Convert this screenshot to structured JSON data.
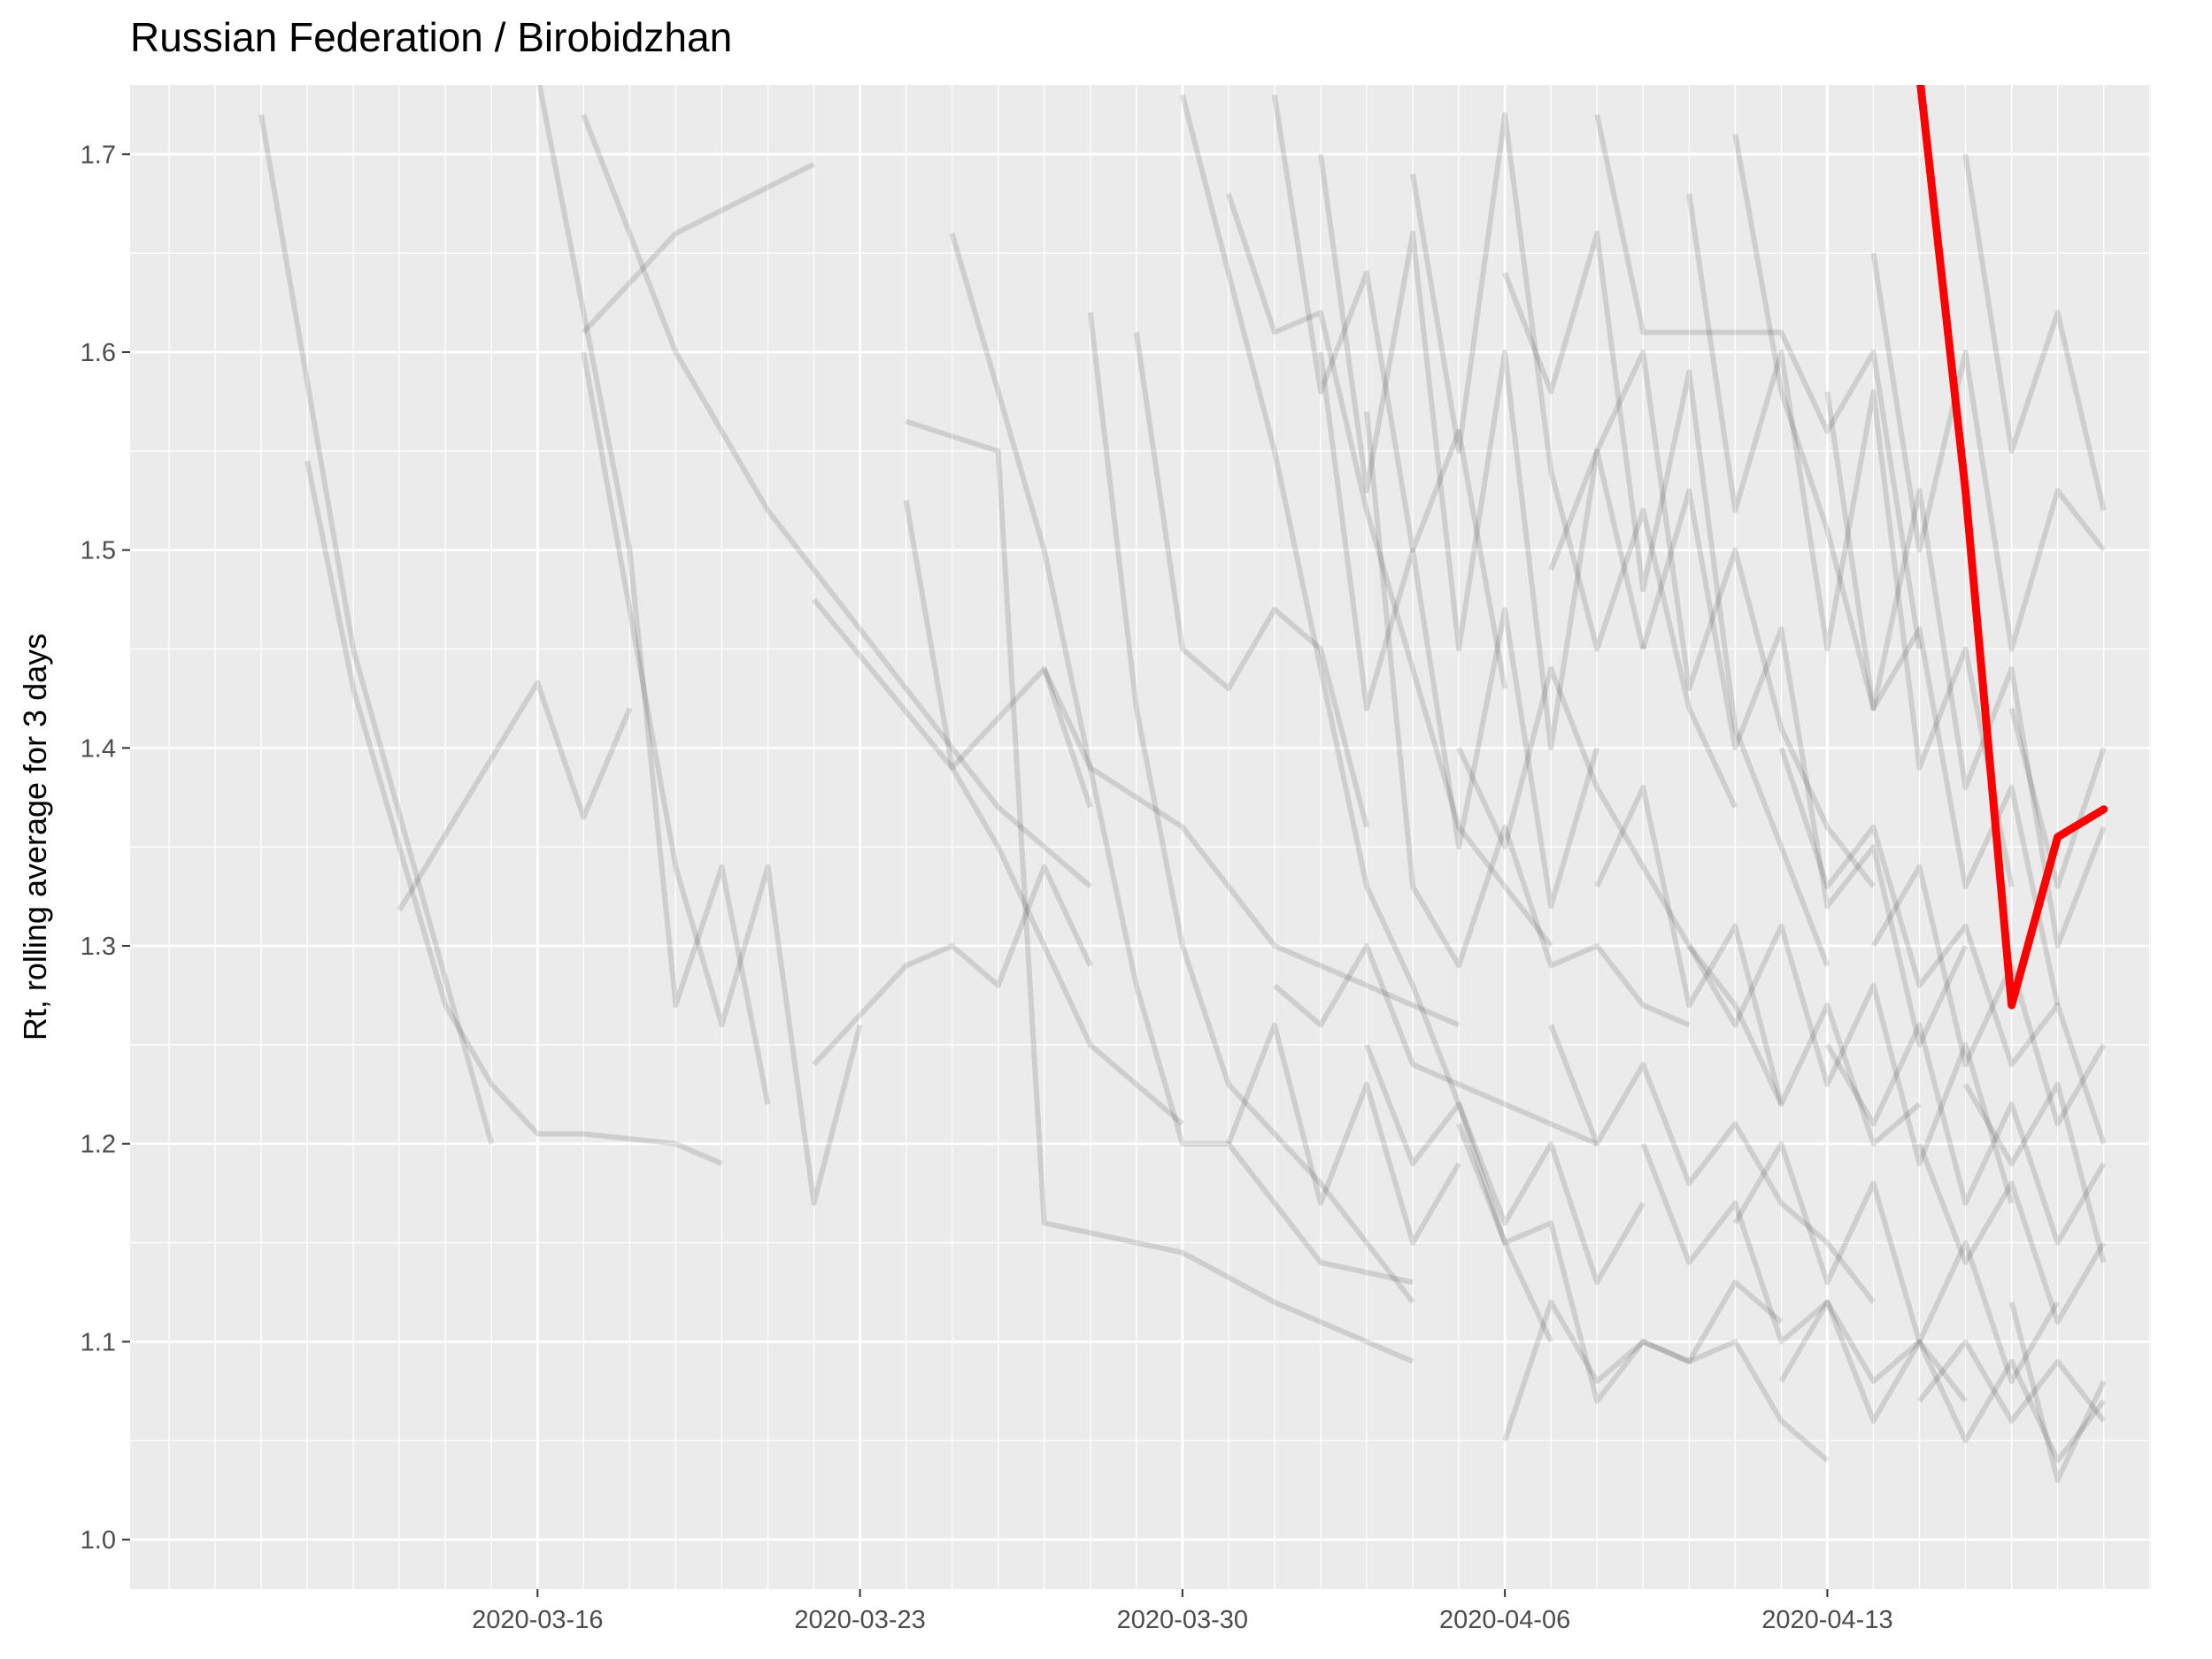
{
  "chart_data": {
    "type": "line",
    "title": "Russian Federation / Birobidzhan",
    "xlabel": "",
    "ylabel": "Rt, rolling average for 3 days",
    "x_type": "date",
    "xlim": [
      "2020-03-09",
      "2020-04-19"
    ],
    "ylim": [
      0.975,
      1.735
    ],
    "x_ticks": [
      "2020-03-16",
      "2020-03-23",
      "2020-03-30",
      "2020-04-06",
      "2020-04-13"
    ],
    "y_ticks": [
      1.0,
      1.1,
      1.2,
      1.3,
      1.4,
      1.5,
      1.6,
      1.7
    ],
    "y_tick_labels": [
      "1.0",
      "1.1",
      "1.2",
      "1.3",
      "1.4",
      "1.5",
      "1.6",
      "1.7"
    ],
    "grid": true,
    "legend": "none",
    "colors": {
      "panel": "#ebebeb",
      "grid": "#ffffff",
      "background_series": "#000000",
      "highlight_series": "#ff0000"
    },
    "background_series_opacity": 0.12,
    "highlight_series": {
      "x": [
        "2020-04-15",
        "2020-04-16",
        "2020-04-17",
        "2020-04-18",
        "2020-04-19"
      ],
      "y": [
        1.74,
        1.53,
        1.27,
        1.355,
        1.369
      ]
    },
    "background_series": [
      {
        "x": [
          "2020-03-10",
          "2020-03-12",
          "2020-03-15"
        ],
        "y": [
          1.72,
          1.45,
          1.2
        ]
      },
      {
        "x": [
          "2020-03-11",
          "2020-03-12",
          "2020-03-14",
          "2020-03-15",
          "2020-03-16",
          "2020-03-17",
          "2020-03-19",
          "2020-03-20"
        ],
        "y": [
          1.545,
          1.43,
          1.27,
          1.23,
          1.205,
          1.205,
          1.2,
          1.19
        ]
      },
      {
        "x": [
          "2020-03-13",
          "2020-03-16",
          "2020-03-17",
          "2020-03-18"
        ],
        "y": [
          1.318,
          1.433,
          1.365,
          1.42
        ]
      },
      {
        "x": [
          "2020-03-17",
          "2020-03-19",
          "2020-03-22"
        ],
        "y": [
          1.61,
          1.66,
          1.695
        ]
      },
      {
        "x": [
          "2020-03-17",
          "2020-03-19",
          "2020-03-21",
          "2020-03-24",
          "2020-03-26",
          "2020-03-28"
        ],
        "y": [
          1.72,
          1.6,
          1.52,
          1.43,
          1.37,
          1.33
        ]
      },
      {
        "x": [
          "2020-03-16",
          "2020-03-18",
          "2020-03-19",
          "2020-03-20",
          "2020-03-21"
        ],
        "y": [
          1.74,
          1.5,
          1.27,
          1.34,
          1.22
        ]
      },
      {
        "x": [
          "2020-03-17",
          "2020-03-19",
          "2020-03-20",
          "2020-03-21",
          "2020-03-22",
          "2020-03-23"
        ],
        "y": [
          1.6,
          1.34,
          1.26,
          1.34,
          1.17,
          1.26
        ]
      },
      {
        "x": [
          "2020-03-22",
          "2020-03-25",
          "2020-03-27",
          "2020-03-28"
        ],
        "y": [
          1.475,
          1.39,
          1.44,
          1.37
        ]
      },
      {
        "x": [
          "2020-03-22",
          "2020-03-24",
          "2020-03-25",
          "2020-03-26",
          "2020-03-27",
          "2020-03-28"
        ],
        "y": [
          1.24,
          1.29,
          1.3,
          1.28,
          1.34,
          1.29
        ]
      },
      {
        "x": [
          "2020-03-24",
          "2020-03-25",
          "2020-03-26",
          "2020-03-27",
          "2020-03-28",
          "2020-03-30"
        ],
        "y": [
          1.525,
          1.39,
          1.35,
          1.3,
          1.25,
          1.21
        ]
      },
      {
        "x": [
          "2020-03-24",
          "2020-03-26",
          "2020-03-27",
          "2020-03-28",
          "2020-03-30",
          "2020-04-01",
          "2020-04-04"
        ],
        "y": [
          1.565,
          1.55,
          1.16,
          1.155,
          1.145,
          1.12,
          1.09
        ]
      },
      {
        "x": [
          "2020-03-27",
          "2020-03-28",
          "2020-03-30",
          "2020-04-01",
          "2020-04-03",
          "2020-04-05"
        ],
        "y": [
          1.44,
          1.39,
          1.36,
          1.3,
          1.28,
          1.26
        ]
      },
      {
        "x": [
          "2020-03-28",
          "2020-03-29",
          "2020-03-30",
          "2020-03-31",
          "2020-04-02",
          "2020-04-04"
        ],
        "y": [
          1.62,
          1.42,
          1.3,
          1.23,
          1.18,
          1.12
        ]
      },
      {
        "x": [
          "2020-03-25",
          "2020-03-27",
          "2020-03-29",
          "2020-03-30",
          "2020-03-31",
          "2020-04-02",
          "2020-04-04"
        ],
        "y": [
          1.66,
          1.5,
          1.28,
          1.2,
          1.2,
          1.14,
          1.13
        ]
      },
      {
        "x": [
          "2020-03-29",
          "2020-03-30",
          "2020-03-31",
          "2020-04-01",
          "2020-04-02",
          "2020-04-03"
        ],
        "y": [
          1.61,
          1.45,
          1.43,
          1.47,
          1.45,
          1.36
        ]
      },
      {
        "x": [
          "2020-03-30",
          "2020-04-01",
          "2020-04-03",
          "2020-04-04",
          "2020-04-05",
          "2020-04-06",
          "2020-04-07"
        ],
        "y": [
          1.73,
          1.55,
          1.33,
          1.28,
          1.22,
          1.15,
          1.1
        ]
      },
      {
        "x": [
          "2020-03-31",
          "2020-04-01",
          "2020-04-02",
          "2020-04-03",
          "2020-04-05",
          "2020-04-07"
        ],
        "y": [
          1.68,
          1.61,
          1.62,
          1.52,
          1.36,
          1.3
        ]
      },
      {
        "x": [
          "2020-04-01",
          "2020-04-02",
          "2020-04-03",
          "2020-04-04",
          "2020-04-06",
          "2020-04-08"
        ],
        "y": [
          1.28,
          1.26,
          1.3,
          1.24,
          1.22,
          1.2
        ]
      },
      {
        "x": [
          "2020-04-02",
          "2020-04-03",
          "2020-04-04",
          "2020-04-05",
          "2020-04-06",
          "2020-04-07",
          "2020-04-08",
          "2020-04-09"
        ],
        "y": [
          1.7,
          1.53,
          1.66,
          1.45,
          1.6,
          1.4,
          1.55,
          1.45
        ]
      },
      {
        "x": [
          "2020-04-03",
          "2020-04-04",
          "2020-04-05",
          "2020-04-06",
          "2020-04-07",
          "2020-04-08",
          "2020-04-09",
          "2020-04-10"
        ],
        "y": [
          1.57,
          1.33,
          1.29,
          1.36,
          1.29,
          1.3,
          1.27,
          1.26
        ]
      },
      {
        "x": [
          "2020-04-04",
          "2020-04-05",
          "2020-04-06",
          "2020-04-07",
          "2020-04-08",
          "2020-04-09",
          "2020-04-10",
          "2020-04-11"
        ],
        "y": [
          1.69,
          1.55,
          1.72,
          1.54,
          1.45,
          1.52,
          1.42,
          1.37
        ]
      },
      {
        "x": [
          "2020-04-05",
          "2020-04-06",
          "2020-04-07",
          "2020-04-08",
          "2020-04-09",
          "2020-04-10",
          "2020-04-11",
          "2020-04-12"
        ],
        "y": [
          1.21,
          1.15,
          1.16,
          1.07,
          1.1,
          1.09,
          1.13,
          1.11
        ]
      },
      {
        "x": [
          "2020-04-05",
          "2020-04-06",
          "2020-04-07",
          "2020-04-08",
          "2020-04-09",
          "2020-04-10",
          "2020-04-11",
          "2020-04-12"
        ],
        "y": [
          1.4,
          1.35,
          1.44,
          1.38,
          1.34,
          1.3,
          1.27,
          1.22
        ]
      },
      {
        "x": [
          "2020-04-06",
          "2020-04-07",
          "2020-04-08",
          "2020-04-09",
          "2020-04-10",
          "2020-04-11",
          "2020-04-12",
          "2020-04-13"
        ],
        "y": [
          1.64,
          1.58,
          1.66,
          1.48,
          1.59,
          1.41,
          1.35,
          1.29
        ]
      },
      {
        "x": [
          "2020-04-06",
          "2020-04-07",
          "2020-04-08",
          "2020-04-09",
          "2020-04-10",
          "2020-04-11",
          "2020-04-12",
          "2020-04-13"
        ],
        "y": [
          1.05,
          1.12,
          1.08,
          1.1,
          1.09,
          1.1,
          1.06,
          1.04
        ]
      },
      {
        "x": [
          "2020-04-07",
          "2020-04-08",
          "2020-04-09",
          "2020-04-10",
          "2020-04-11",
          "2020-04-12",
          "2020-04-13",
          "2020-04-14"
        ],
        "y": [
          1.49,
          1.55,
          1.6,
          1.43,
          1.5,
          1.41,
          1.36,
          1.33
        ]
      },
      {
        "x": [
          "2020-04-07",
          "2020-04-08",
          "2020-04-09",
          "2020-04-10",
          "2020-04-11",
          "2020-04-12",
          "2020-04-13",
          "2020-04-14"
        ],
        "y": [
          1.26,
          1.2,
          1.24,
          1.18,
          1.21,
          1.17,
          1.15,
          1.12
        ]
      },
      {
        "x": [
          "2020-04-08",
          "2020-04-09",
          "2020-04-10",
          "2020-04-11",
          "2020-04-12",
          "2020-04-13",
          "2020-04-14",
          "2020-04-15"
        ],
        "y": [
          1.72,
          1.61,
          1.61,
          1.61,
          1.61,
          1.56,
          1.6,
          1.45
        ]
      },
      {
        "x": [
          "2020-04-08",
          "2020-04-09",
          "2020-04-10",
          "2020-04-11",
          "2020-04-12",
          "2020-04-13",
          "2020-04-14",
          "2020-04-15"
        ],
        "y": [
          1.33,
          1.38,
          1.27,
          1.31,
          1.22,
          1.27,
          1.2,
          1.22
        ]
      },
      {
        "x": [
          "2020-04-09",
          "2020-04-10",
          "2020-04-11",
          "2020-04-12",
          "2020-04-13",
          "2020-04-14",
          "2020-04-15",
          "2020-04-16"
        ],
        "y": [
          1.45,
          1.53,
          1.4,
          1.46,
          1.32,
          1.35,
          1.25,
          1.3
        ]
      },
      {
        "x": [
          "2020-04-09",
          "2020-04-10",
          "2020-04-11",
          "2020-04-12",
          "2020-04-13",
          "2020-04-14",
          "2020-04-15",
          "2020-04-16"
        ],
        "y": [
          1.2,
          1.14,
          1.17,
          1.1,
          1.12,
          1.08,
          1.1,
          1.07
        ]
      },
      {
        "x": [
          "2020-04-10",
          "2020-04-11",
          "2020-04-12",
          "2020-04-13",
          "2020-04-14",
          "2020-04-15",
          "2020-04-16",
          "2020-04-17"
        ],
        "y": [
          1.68,
          1.52,
          1.6,
          1.45,
          1.58,
          1.39,
          1.45,
          1.33
        ]
      },
      {
        "x": [
          "2020-04-10",
          "2020-04-11",
          "2020-04-12",
          "2020-04-13",
          "2020-04-14",
          "2020-04-15",
          "2020-04-16",
          "2020-04-17"
        ],
        "y": [
          1.3,
          1.26,
          1.31,
          1.23,
          1.28,
          1.19,
          1.25,
          1.17
        ]
      },
      {
        "x": [
          "2020-04-11",
          "2020-04-12",
          "2020-04-13",
          "2020-04-14",
          "2020-04-15",
          "2020-04-16",
          "2020-04-17",
          "2020-04-18"
        ],
        "y": [
          1.71,
          1.58,
          1.51,
          1.42,
          1.46,
          1.33,
          1.38,
          1.27
        ]
      },
      {
        "x": [
          "2020-04-11",
          "2020-04-12",
          "2020-04-13",
          "2020-04-14",
          "2020-04-15",
          "2020-04-16",
          "2020-04-17",
          "2020-04-18"
        ],
        "y": [
          1.16,
          1.2,
          1.13,
          1.18,
          1.1,
          1.15,
          1.08,
          1.12
        ]
      },
      {
        "x": [
          "2020-04-12",
          "2020-04-13",
          "2020-04-14",
          "2020-04-15",
          "2020-04-16",
          "2020-04-17",
          "2020-04-18",
          "2020-04-19"
        ],
        "y": [
          1.4,
          1.33,
          1.36,
          1.28,
          1.31,
          1.24,
          1.27,
          1.2
        ]
      },
      {
        "x": [
          "2020-04-12",
          "2020-04-13",
          "2020-04-14",
          "2020-04-15",
          "2020-04-16",
          "2020-04-17",
          "2020-04-18",
          "2020-04-19"
        ],
        "y": [
          1.08,
          1.12,
          1.06,
          1.1,
          1.05,
          1.09,
          1.04,
          1.07
        ]
      },
      {
        "x": [
          "2020-04-13",
          "2020-04-14",
          "2020-04-15",
          "2020-04-16",
          "2020-04-17",
          "2020-04-18",
          "2020-04-19"
        ],
        "y": [
          1.58,
          1.42,
          1.53,
          1.38,
          1.44,
          1.3,
          1.36
        ]
      },
      {
        "x": [
          "2020-04-13",
          "2020-04-14",
          "2020-04-15",
          "2020-04-16",
          "2020-04-17",
          "2020-04-18",
          "2020-04-19"
        ],
        "y": [
          1.25,
          1.21,
          1.26,
          1.17,
          1.22,
          1.15,
          1.19
        ]
      },
      {
        "x": [
          "2020-04-14",
          "2020-04-15",
          "2020-04-16",
          "2020-04-17",
          "2020-04-18",
          "2020-04-19"
        ],
        "y": [
          1.65,
          1.5,
          1.6,
          1.45,
          1.53,
          1.5
        ]
      },
      {
        "x": [
          "2020-04-14",
          "2020-04-15",
          "2020-04-16",
          "2020-04-17",
          "2020-04-18",
          "2020-04-19"
        ],
        "y": [
          1.3,
          1.34,
          1.24,
          1.29,
          1.21,
          1.25
        ]
      },
      {
        "x": [
          "2020-04-15",
          "2020-04-16",
          "2020-04-17",
          "2020-04-18",
          "2020-04-19"
        ],
        "y": [
          1.2,
          1.14,
          1.18,
          1.11,
          1.15
        ]
      },
      {
        "x": [
          "2020-04-15",
          "2020-04-16",
          "2020-04-17",
          "2020-04-18",
          "2020-04-19"
        ],
        "y": [
          1.07,
          1.1,
          1.06,
          1.09,
          1.06
        ]
      },
      {
        "x": [
          "2020-04-16",
          "2020-04-17",
          "2020-04-18",
          "2020-04-19"
        ],
        "y": [
          1.7,
          1.55,
          1.62,
          1.52
        ]
      },
      {
        "x": [
          "2020-04-16",
          "2020-04-17",
          "2020-04-18",
          "2020-04-19"
        ],
        "y": [
          1.23,
          1.19,
          1.23,
          1.14
        ]
      },
      {
        "x": [
          "2020-04-17",
          "2020-04-18",
          "2020-04-19"
        ],
        "y": [
          1.42,
          1.33,
          1.4
        ]
      },
      {
        "x": [
          "2020-04-17",
          "2020-04-18",
          "2020-04-19"
        ],
        "y": [
          1.12,
          1.03,
          1.08
        ]
      },
      {
        "x": [
          "2020-04-02",
          "2020-04-03",
          "2020-04-04",
          "2020-04-05",
          "2020-04-06",
          "2020-04-07",
          "2020-04-08"
        ],
        "y": [
          1.6,
          1.42,
          1.5,
          1.35,
          1.47,
          1.32,
          1.4
        ]
      },
      {
        "x": [
          "2020-04-01",
          "2020-04-02",
          "2020-04-03",
          "2020-04-04",
          "2020-04-05",
          "2020-04-06"
        ],
        "y": [
          1.73,
          1.58,
          1.64,
          1.5,
          1.56,
          1.43
        ]
      },
      {
        "x": [
          "2020-04-03",
          "2020-04-04",
          "2020-04-05",
          "2020-04-06",
          "2020-04-07",
          "2020-04-08",
          "2020-04-09"
        ],
        "y": [
          1.25,
          1.19,
          1.22,
          1.16,
          1.2,
          1.13,
          1.17
        ]
      },
      {
        "x": [
          "2020-03-31",
          "2020-04-01",
          "2020-04-02",
          "2020-04-03",
          "2020-04-04",
          "2020-04-05"
        ],
        "y": [
          1.2,
          1.26,
          1.17,
          1.23,
          1.15,
          1.19
        ]
      }
    ]
  }
}
